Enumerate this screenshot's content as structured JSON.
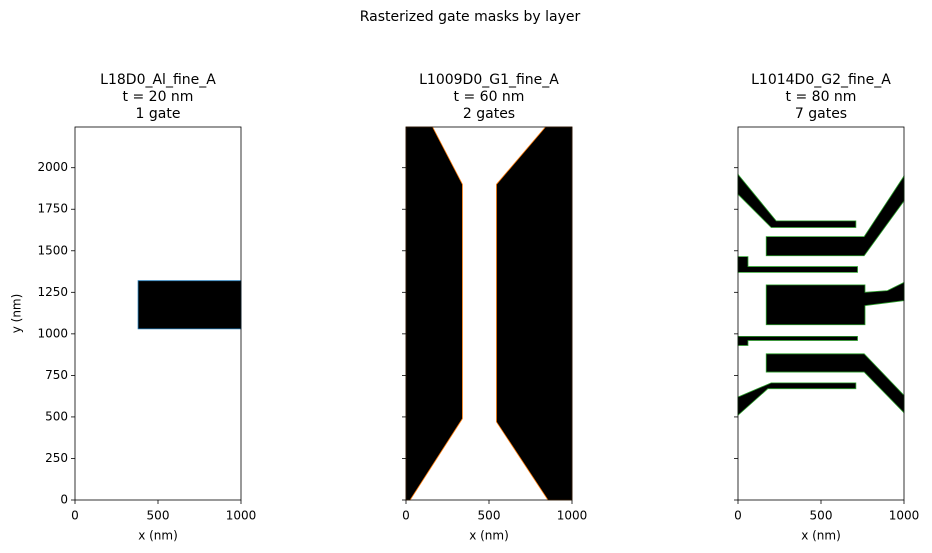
{
  "title": "Rasterized gate masks by layer",
  "chart_data": [
    {
      "type": "mask",
      "title": [
        "L18D0_Al_fine_A",
        "t = 20 nm",
        "1 gate"
      ],
      "xlabel": "x (nm)",
      "ylabel": "y (nm)",
      "xlim": [
        0,
        1000
      ],
      "ylim": [
        0,
        2245
      ],
      "xticks": [
        0,
        500,
        1000
      ],
      "yticks": [
        0,
        250,
        500,
        750,
        1000,
        1250,
        1500,
        1750,
        2000
      ],
      "ytick_labels_shown": true,
      "fill": "#000000",
      "edge_color": "#1f77b4",
      "shapes": [
        {
          "x": [
            380,
            1000,
            1000,
            380
          ],
          "y": [
            1030,
            1030,
            1320,
            1320
          ]
        }
      ]
    },
    {
      "type": "mask",
      "title": [
        "L1009D0_G1_fine_A",
        "t = 60 nm",
        "2 gates"
      ],
      "xlabel": "x (nm)",
      "xlim": [
        0,
        1000
      ],
      "ylim": [
        0,
        2245
      ],
      "xticks": [
        0,
        500,
        1000
      ],
      "yticks": [
        0,
        250,
        500,
        750,
        1000,
        1250,
        1500,
        1750,
        2000
      ],
      "ytick_labels_shown": false,
      "fill": "#000000",
      "edge_color": "#ff7f0e",
      "shapes": [
        {
          "x": [
            0,
            25,
            340,
            340,
            160,
            0
          ],
          "y": [
            0,
            0,
            490,
            1900,
            2245,
            2245
          ]
        },
        {
          "x": [
            855,
            1000,
            1000,
            840,
            545,
            545
          ],
          "y": [
            0,
            0,
            2245,
            2245,
            1900,
            470
          ]
        }
      ]
    },
    {
      "type": "mask",
      "title": [
        "L1014D0_G2_fine_A",
        "t = 80 nm",
        "7 gates"
      ],
      "xlabel": "x (nm)",
      "xlim": [
        0,
        1000
      ],
      "ylim": [
        0,
        2245
      ],
      "xticks": [
        0,
        500,
        1000
      ],
      "yticks": [
        0,
        250,
        500,
        750,
        1000,
        1250,
        1500,
        1750,
        2000
      ],
      "ytick_labels_shown": false,
      "fill": "#000000",
      "edge_color": "#2ca02c",
      "shapes": [
        {
          "x": [
            0,
            0,
            230,
            710,
            710,
            200
          ],
          "y": [
            1840,
            1960,
            1680,
            1680,
            1640,
            1640
          ]
        },
        {
          "x": [
            170,
            760,
            1000,
            1000,
            760,
            170
          ],
          "y": [
            1470,
            1470,
            1800,
            1950,
            1585,
            1585
          ]
        },
        {
          "x": [
            0,
            0,
            60,
            60,
            720,
            720
          ],
          "y": [
            1370,
            1465,
            1465,
            1405,
            1405,
            1370
          ]
        },
        {
          "x": [
            170,
            765,
            765,
            1000,
            1000,
            900,
            765,
            765,
            170
          ],
          "y": [
            1055,
            1055,
            1170,
            1200,
            1310,
            1260,
            1250,
            1295,
            1295
          ]
        },
        {
          "x": [
            0,
            0,
            720,
            720,
            60,
            60
          ],
          "y": [
            930,
            985,
            985,
            960,
            960,
            930
          ]
        },
        {
          "x": [
            170,
            760,
            1000,
            1000,
            760,
            170
          ],
          "y": [
            770,
            770,
            525,
            630,
            880,
            880
          ]
        },
        {
          "x": [
            0,
            0,
            200,
            710,
            710,
            180
          ],
          "y": [
            510,
            620,
            705,
            705,
            670,
            670
          ]
        }
      ]
    }
  ]
}
